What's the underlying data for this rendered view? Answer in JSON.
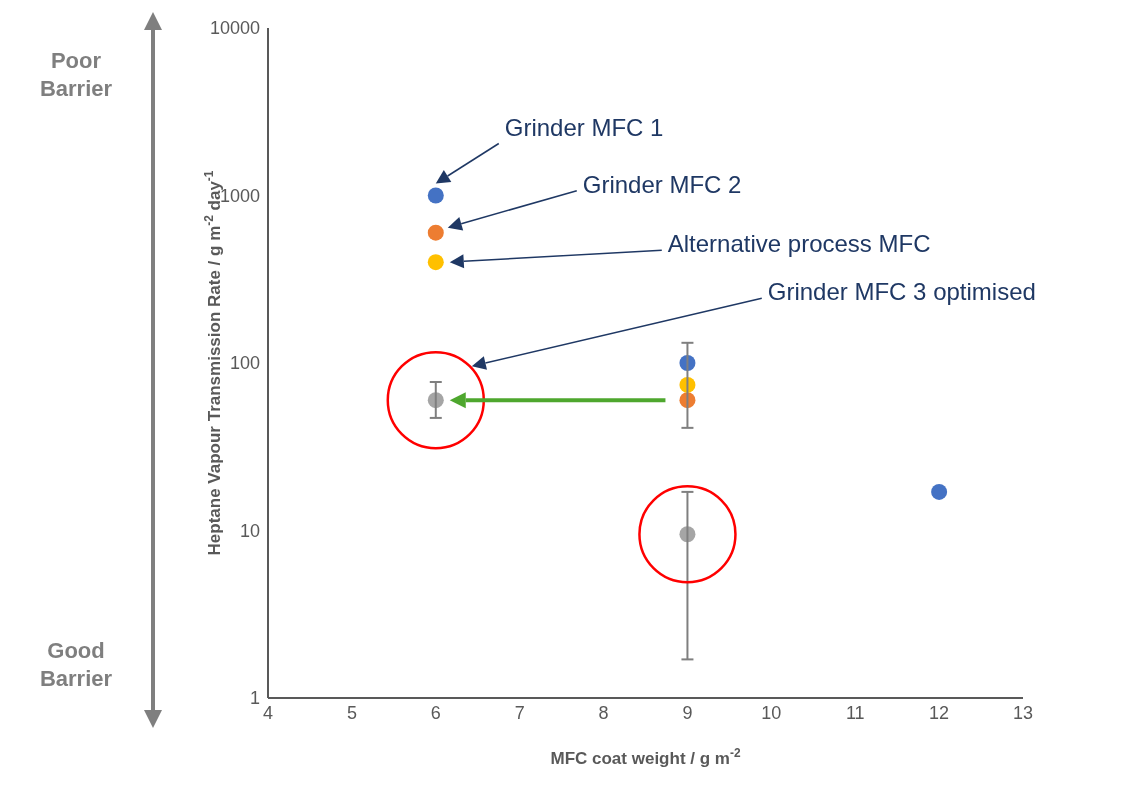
{
  "chart_data": {
    "type": "scatter",
    "xlabel": "MFC coat weight / g m$^{-2}$",
    "ylabel": "Heptane Vapour Transmission Rate / g m$^{-2}$ day$^{-1}$",
    "xlim": [
      4,
      13
    ],
    "xticks": [
      4,
      5,
      6,
      7,
      8,
      9,
      10,
      11,
      12,
      13
    ],
    "ylim": [
      1,
      10000
    ],
    "yticks": [
      1,
      10,
      100,
      1000,
      10000
    ],
    "log": "y",
    "grid": false,
    "marker": "circle",
    "series": [
      {
        "color": "#4472c4",
        "x": [
          6,
          9,
          12
        ],
        "values": [
          1000,
          100,
          17
        ]
      },
      {
        "color": "#ed7d31",
        "x": [
          6,
          9
        ],
        "values": [
          600,
          60
        ],
        "errors": [
          null,
          [
            41,
            132
          ]
        ]
      },
      {
        "color": "#ffc000",
        "x": [
          6,
          9
        ],
        "values": [
          400,
          74
        ]
      },
      {
        "color": "#a5a5a5",
        "x": [
          6,
          9
        ],
        "values": [
          60,
          9.5
        ],
        "errors": [
          [
            47,
            77
          ],
          [
            1.7,
            17
          ]
        ]
      }
    ],
    "annotations": [
      "Grinder MFC 1",
      "Grinder MFC 2",
      "Alternative process MFC",
      "Grinder MFC 3 optimised",
      "Poor Barrier",
      "Good Barrier"
    ]
  }
}
